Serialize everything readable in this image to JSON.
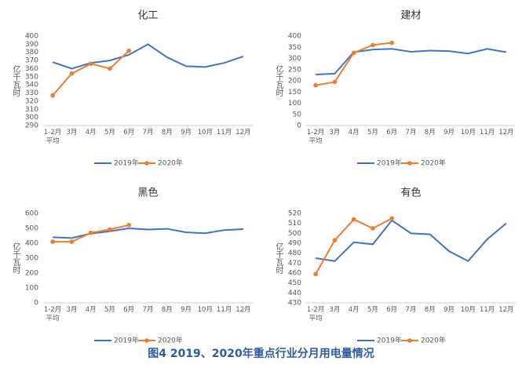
{
  "caption": "图4  2019、2020年重点行业分月用电量情况",
  "chart_data": [
    {
      "type": "line",
      "title": "化工",
      "ylabel": "亿千瓦时",
      "categories": [
        "1-2月平均",
        "3月",
        "4月",
        "5月",
        "6月",
        "7月",
        "8月",
        "9月",
        "10月",
        "11月",
        "12月"
      ],
      "ylim": [
        290,
        400
      ],
      "yticks": [
        290,
        300,
        310,
        320,
        330,
        340,
        350,
        360,
        370,
        380,
        390,
        400
      ],
      "grid": false,
      "legend": "bottom",
      "series": [
        {
          "name": "2019年",
          "color": "#4472c4",
          "values": [
            368,
            360,
            367,
            370,
            377,
            390,
            374,
            363,
            362,
            367,
            375
          ]
        },
        {
          "name": "2020年",
          "color": "#ed7d31",
          "values": [
            327,
            354,
            366,
            360,
            382,
            null,
            null,
            null,
            null,
            null,
            null
          ]
        }
      ]
    },
    {
      "type": "line",
      "title": "建材",
      "ylabel": "亿千瓦时",
      "categories": [
        "1-2月平均",
        "3月",
        "4月",
        "5月",
        "6月",
        "7月",
        "8月",
        "9月",
        "10月",
        "11月",
        "12月"
      ],
      "ylim": [
        0,
        400
      ],
      "yticks": [
        0,
        50,
        100,
        150,
        200,
        250,
        300,
        350,
        400
      ],
      "grid": false,
      "legend": "bottom",
      "series": [
        {
          "name": "2019年",
          "color": "#4472c4",
          "values": [
            228,
            232,
            328,
            340,
            343,
            330,
            335,
            333,
            322,
            343,
            328
          ]
        },
        {
          "name": "2020年",
          "color": "#ed7d31",
          "values": [
            180,
            195,
            325,
            360,
            370,
            null,
            null,
            null,
            null,
            null,
            null
          ]
        }
      ]
    },
    {
      "type": "line",
      "title": "黑色",
      "ylabel": "亿千瓦时",
      "categories": [
        "1-2月平均",
        "3月",
        "4月",
        "5月",
        "6月",
        "7月",
        "8月",
        "9月",
        "10月",
        "11月",
        "12月"
      ],
      "ylim": [
        0,
        600
      ],
      "yticks": [
        0,
        100,
        200,
        300,
        400,
        500,
        600
      ],
      "grid": false,
      "legend": "bottom",
      "series": [
        {
          "name": "2019年",
          "color": "#4472c4",
          "values": [
            440,
            435,
            465,
            480,
            500,
            492,
            497,
            473,
            467,
            488,
            495
          ]
        },
        {
          "name": "2020年",
          "color": "#ed7d31",
          "values": [
            410,
            410,
            470,
            492,
            522,
            null,
            null,
            null,
            null,
            null,
            null
          ]
        }
      ]
    },
    {
      "type": "line",
      "title": "有色",
      "ylabel": "亿千瓦时",
      "categories": [
        "1-2月平均",
        "3月",
        "4月",
        "5月",
        "6月",
        "7月",
        "8月",
        "9月",
        "10月",
        "11月",
        "12月"
      ],
      "ylim": [
        430,
        520
      ],
      "yticks": [
        430,
        440,
        450,
        460,
        470,
        480,
        490,
        500,
        510,
        520
      ],
      "grid": false,
      "legend": "bottom",
      "series": [
        {
          "name": "2019年",
          "color": "#4472c4",
          "values": [
            475,
            472,
            491,
            489,
            513,
            500,
            499,
            482,
            472,
            494,
            510
          ]
        },
        {
          "name": "2020年",
          "color": "#ed7d31",
          "values": [
            459,
            493,
            514,
            505,
            515,
            null,
            null,
            null,
            null,
            null,
            null
          ]
        }
      ]
    }
  ]
}
